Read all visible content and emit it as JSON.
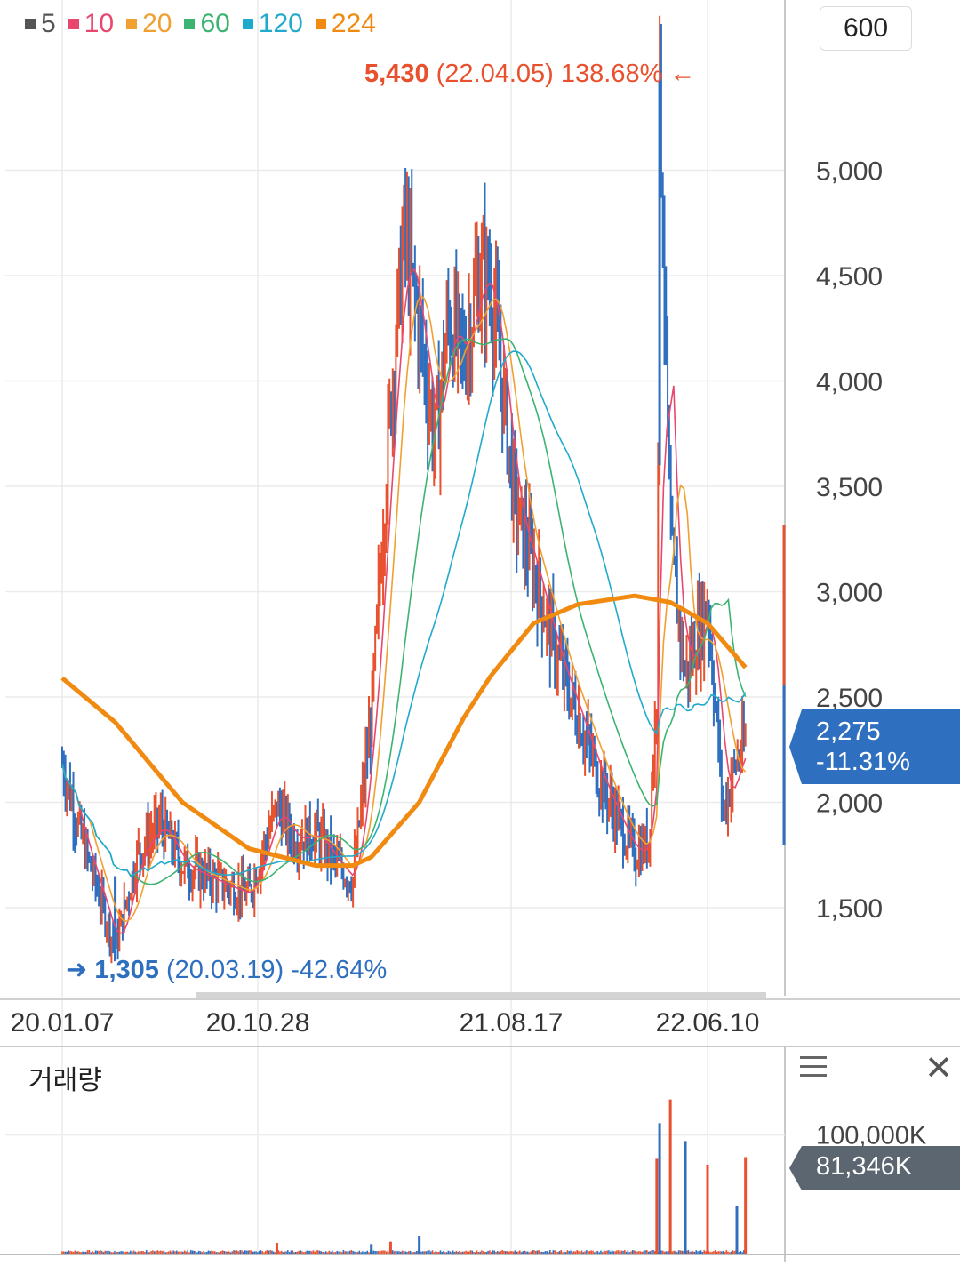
{
  "legend": [
    {
      "label": "5",
      "color": "#555555"
    },
    {
      "label": "10",
      "color": "#e8476f"
    },
    {
      "label": "20",
      "color": "#f0a030"
    },
    {
      "label": "60",
      "color": "#3cb371"
    },
    {
      "label": "120",
      "color": "#22aacc"
    },
    {
      "label": "224",
      "color": "#f08a10"
    }
  ],
  "period_button": "600",
  "max_marker": {
    "value": "5,430",
    "detail": "(22.04.05) 138.68%",
    "arrow": "←"
  },
  "min_marker": {
    "arrow": "➜",
    "value": "1,305",
    "detail": "(20.03.19) -42.64%"
  },
  "current_price": {
    "value": "2,275",
    "change": "-11.31%"
  },
  "volume_panel": {
    "title": "거래량",
    "axis_label": "100,000K",
    "current": "81,346K"
  },
  "colors": {
    "up": "#e8502e",
    "down": "#2f6fbf",
    "ma224": "#f08a10",
    "grid": "#ececec"
  },
  "chart_data": [
    {
      "type": "candlestick",
      "title": "",
      "x_ticks": [
        "20.01.07",
        "20.10.28",
        "21.08.17",
        "22.06.10"
      ],
      "y_ticks": [
        "1,500",
        "2,000",
        "2,500",
        "3,000",
        "3,500",
        "4,000",
        "4,500",
        "5,000"
      ],
      "ylim": [
        1150,
        5600
      ],
      "grid": true,
      "price_path": [
        [
          "20.01.07",
          2180
        ],
        [
          "20.02.01",
          1850
        ],
        [
          "20.03.19",
          1305
        ],
        [
          "20.04.20",
          1760
        ],
        [
          "20.05.20",
          1900
        ],
        [
          "20.06.20",
          1700
        ],
        [
          "20.07.20",
          1650
        ],
        [
          "20.08.20",
          1600
        ],
        [
          "20.09.20",
          1560
        ],
        [
          "20.10.28",
          1980
        ],
        [
          "20.11.20",
          1820
        ],
        [
          "20.12.20",
          1850
        ],
        [
          "21.01.20",
          1700
        ],
        [
          "21.02.10",
          1620
        ],
        [
          "21.03.05",
          2400
        ],
        [
          "21.04.01",
          3900
        ],
        [
          "21.04.20",
          4700
        ],
        [
          "21.05.10",
          4250
        ],
        [
          "21.06.01",
          3700
        ],
        [
          "21.06.20",
          4300
        ],
        [
          "21.07.10",
          4100
        ],
        [
          "21.08.01",
          4500
        ],
        [
          "21.08.17",
          4450
        ],
        [
          "21.09.01",
          4000
        ],
        [
          "21.09.20",
          3400
        ],
        [
          "21.10.15",
          3100
        ],
        [
          "21.11.15",
          2700
        ],
        [
          "21.12.15",
          2400
        ],
        [
          "22.01.15",
          2100
        ],
        [
          "22.02.10",
          1900
        ],
        [
          "22.03.01",
          1750
        ],
        [
          "22.03.20",
          1800
        ],
        [
          "22.04.01",
          2500
        ],
        [
          "22.04.05",
          5430
        ],
        [
          "22.04.20",
          3200
        ],
        [
          "22.05.10",
          2600
        ],
        [
          "22.06.10",
          2950
        ],
        [
          "22.07.01",
          1950
        ],
        [
          "22.07.20",
          2200
        ],
        [
          "22.08.01",
          2275
        ]
      ],
      "ma224": [
        [
          "20.01.07",
          2590
        ],
        [
          "20.03.19",
          2380
        ],
        [
          "20.06.20",
          2000
        ],
        [
          "20.09.20",
          1780
        ],
        [
          "20.12.20",
          1700
        ],
        [
          "21.02.10",
          1700
        ],
        [
          "21.03.05",
          1740
        ],
        [
          "21.05.10",
          2000
        ],
        [
          "21.07.10",
          2400
        ],
        [
          "21.08.17",
          2600
        ],
        [
          "21.10.15",
          2850
        ],
        [
          "21.12.15",
          2940
        ],
        [
          "22.03.01",
          2980
        ],
        [
          "22.04.20",
          2950
        ],
        [
          "22.06.10",
          2850
        ],
        [
          "22.08.01",
          2640
        ]
      ]
    },
    {
      "type": "bar",
      "title": "거래량",
      "y_ticks": [
        "100,000K"
      ],
      "ylim": [
        0,
        135000
      ],
      "unit": "K",
      "spikes": [
        [
          "20.10.28",
          9000
        ],
        [
          "21.03.05",
          8000
        ],
        [
          "21.04.01",
          10000
        ],
        [
          "21.05.10",
          15000
        ],
        [
          "22.04.01",
          80000
        ],
        [
          "22.04.05",
          110000
        ],
        [
          "22.04.20",
          130000
        ],
        [
          "22.05.10",
          95000
        ],
        [
          "22.06.10",
          75000
        ],
        [
          "22.07.20",
          40000
        ],
        [
          "22.08.01",
          81346
        ]
      ]
    }
  ]
}
